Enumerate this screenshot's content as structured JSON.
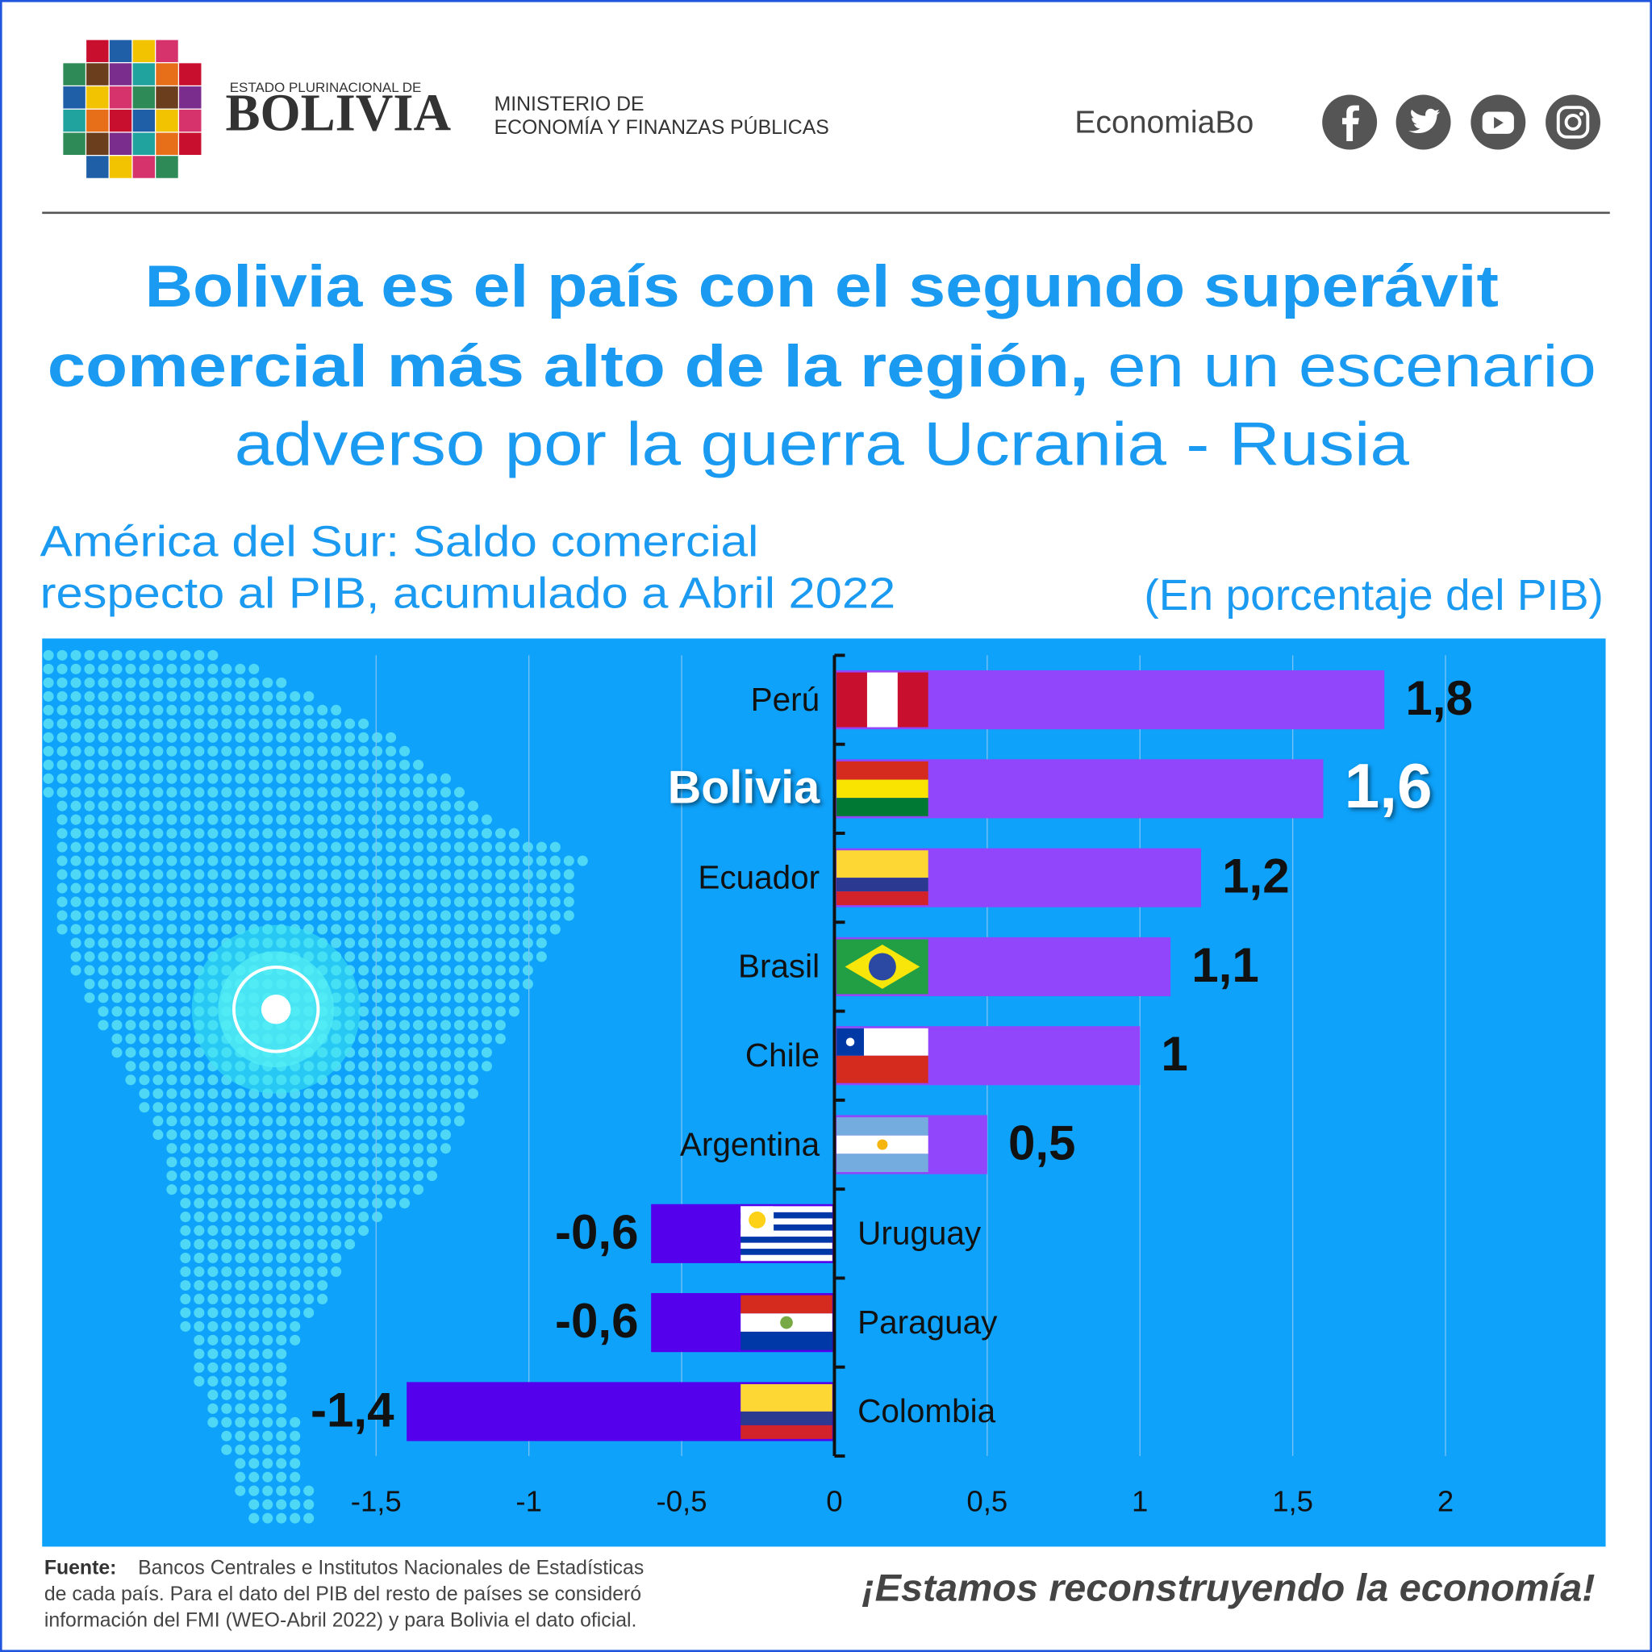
{
  "header": {
    "org_small": "ESTADO PLURINACIONAL DE",
    "org_big": "BOLIVIA",
    "ministry_line1": "MINISTERIO DE",
    "ministry_line2": "ECONOMÍA Y FINANZAS PÚBLICAS",
    "handle": "EconomiaBo"
  },
  "headline": {
    "line1": "Bolivia es el país con el segundo superávit",
    "line2_bold": "comercial más alto de la región,",
    "line2": "en un escenario",
    "line3": "adverso por la guerra Ucrania - Rusia"
  },
  "chart_data": {
    "type": "bar",
    "orientation": "horizontal",
    "subtitle_line1": "América del Sur: Saldo comercial",
    "subtitle_line2": "respecto al PIB, acumulado a Abril 2022",
    "unit": "(En porcentaje del PIB)",
    "categories": [
      "Perú",
      "Bolivia",
      "Ecuador",
      "Brasil",
      "Chile",
      "Argentina",
      "Uruguay",
      "Paraguay",
      "Colombia"
    ],
    "values": [
      1.8,
      1.6,
      1.2,
      1.1,
      1,
      0.5,
      -0.6,
      -0.6,
      -1.4
    ],
    "value_labels": [
      "1,8",
      "1,6",
      "1,2",
      "1,1",
      "1",
      "0,5",
      "-0,6",
      "-0,6",
      "-1,4"
    ],
    "color_positive": "#9146fc",
    "color_negative": "#5400ec",
    "highlight_index": 1,
    "xlim": [
      -2.6,
      2.5
    ],
    "xticks": [
      {
        "value": -1.5,
        "label": "-1,5"
      },
      -1,
      {
        "value": -0.5,
        "label": "-0,5"
      },
      0,
      {
        "value": 0.5,
        "label": "0,5"
      },
      1,
      {
        "value": 1.5,
        "label": "1,5"
      },
      2
    ],
    "grid": true
  },
  "footer": {
    "source_label": "Fuente:",
    "source_line1": "Bancos Centrales e Institutos Nacionales de Estadísticas",
    "source_line2": "de cada país. Para el dato del PIB del resto de países se consideró",
    "source_line3": "información del FMI (WEO-Abril 2022) y para Bolivia el dato oficial.",
    "slogan": "¡Estamos reconstruyendo la economía!"
  }
}
